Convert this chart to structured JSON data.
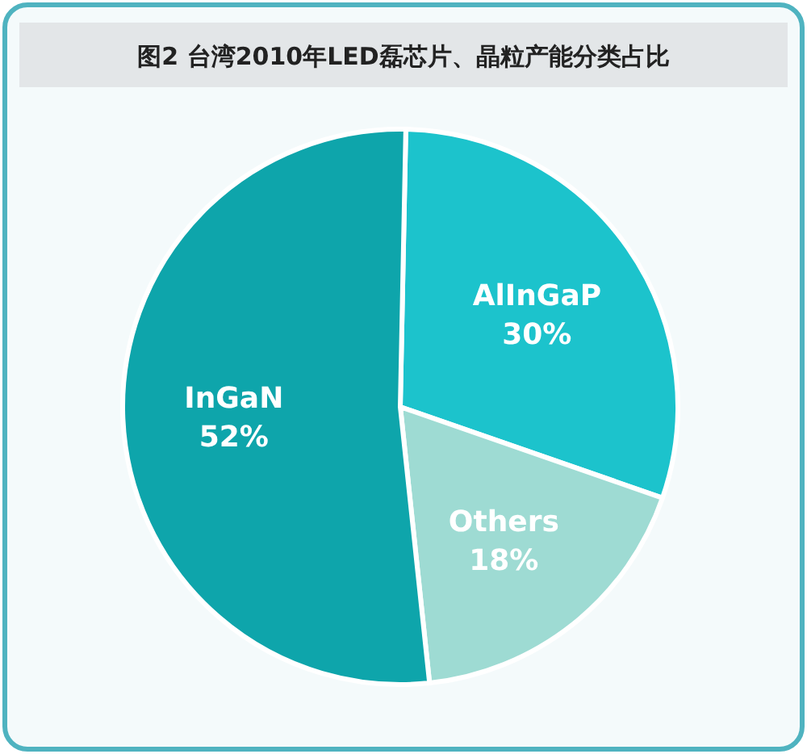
{
  "chart_data": {
    "type": "pie",
    "title": "图2  台湾2010年LED磊芯片、晶粒产能分类占比",
    "categories": [
      "AlInGaP",
      "Others",
      "InGaN"
    ],
    "values": [
      30,
      18,
      52
    ],
    "colors": [
      "#1cc3cc",
      "#9edbd3",
      "#0ea5ab"
    ],
    "value_labels": [
      "30%",
      "18%",
      "52%"
    ],
    "legend": false
  }
}
